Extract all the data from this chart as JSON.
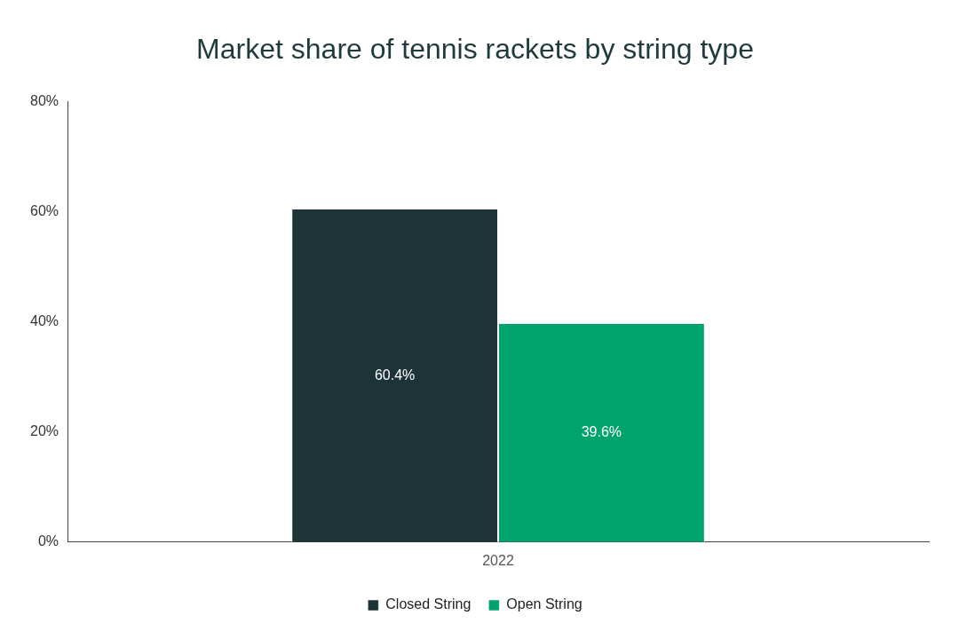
{
  "chart_data": {
    "type": "bar",
    "title": "Market share of tennis rackets by string type",
    "categories": [
      "2022"
    ],
    "series": [
      {
        "name": "Closed String",
        "color": "#1c3338",
        "values": [
          60.4
        ],
        "value_labels": [
          "60.4%"
        ]
      },
      {
        "name": "Open String",
        "color": "#00a36c",
        "values": [
          39.6
        ],
        "value_labels": [
          "39.6%"
        ]
      }
    ],
    "ylim": [
      0,
      80
    ],
    "yticks": [
      {
        "value": 0,
        "label": "0%"
      },
      {
        "value": 20,
        "label": "20%"
      },
      {
        "value": 40,
        "label": "40%"
      },
      {
        "value": 60,
        "label": "60%"
      },
      {
        "value": 80,
        "label": "80%"
      }
    ],
    "grid": false,
    "legend": "bottom"
  }
}
